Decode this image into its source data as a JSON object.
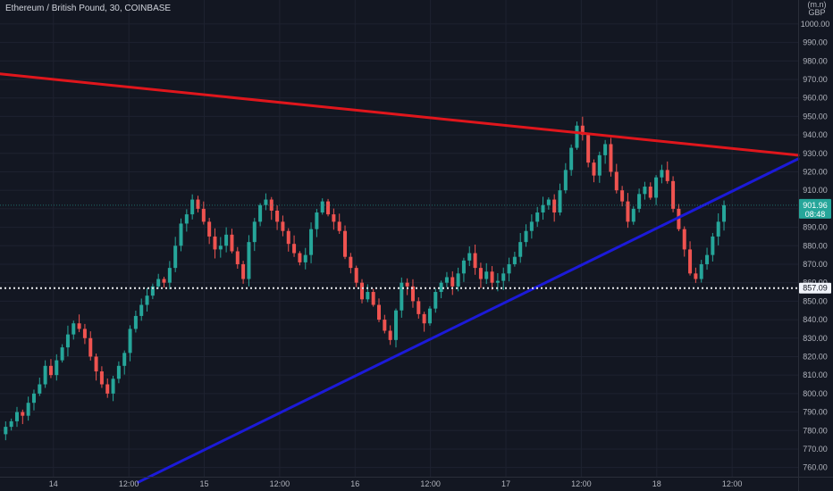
{
  "header": {
    "title": "Ethereum / British Pound, 30, COINBASE"
  },
  "axis_currency": {
    "line1": "(m.n)",
    "line2": "GBP"
  },
  "price_tags": {
    "last": {
      "price": "901.96",
      "countdown": "08:48",
      "color": "#26a69a"
    },
    "hline": {
      "price": "857.09",
      "color": "#e8e9ec"
    }
  },
  "colors": {
    "background": "#131722",
    "up": "#26a69a",
    "down": "#ef5350",
    "resistance": "#e0161c",
    "support": "#1c1ad8",
    "axis_text": "#b2b5be"
  },
  "chart_data": {
    "type": "candlestick",
    "title": "Ethereum / British Pound, 30, COINBASE",
    "y_ticks": [
      760,
      770,
      780,
      790,
      800,
      810,
      820,
      830,
      840,
      850,
      860,
      870,
      880,
      890,
      900,
      910,
      920,
      930,
      940,
      950,
      960,
      970,
      980,
      990,
      1000
    ],
    "y_tick_labels": [
      "760.00",
      "770.00",
      "780.00",
      "790.00",
      "800.00",
      "810.00",
      "820.00",
      "830.00",
      "840.00",
      "850.00",
      "860.00",
      "870.00",
      "880.00",
      "890.00",
      "900.00",
      "910.00",
      "920.00",
      "930.00",
      "940.00",
      "950.00",
      "960.00",
      "970.00",
      "980.00",
      "990.00",
      "1000.00"
    ],
    "ylim": [
      755,
      1013
    ],
    "x_ticks": [
      {
        "label": "14",
        "t": 0
      },
      {
        "label": "12:00",
        "t": 24
      },
      {
        "label": "15",
        "t": 48
      },
      {
        "label": "12:00",
        "t": 72
      },
      {
        "label": "16",
        "t": 96
      },
      {
        "label": "12:00",
        "t": 120
      },
      {
        "label": "17",
        "t": 144
      },
      {
        "label": "12:00",
        "t": 168
      },
      {
        "label": "18",
        "t": 192
      },
      {
        "label": "12:00",
        "t": 216
      }
    ],
    "x_range": [
      -17,
      237
    ],
    "last_price": 901.96,
    "horizontal_line": 857.09,
    "trendlines": [
      {
        "name": "resistance",
        "color": "#e0161c",
        "from": {
          "t": -17,
          "price": 973
        },
        "to": {
          "t": 237,
          "price": 929
        }
      },
      {
        "name": "support",
        "color": "#1c1ad8",
        "from": {
          "t": 27,
          "price": 752
        },
        "to": {
          "t": 237,
          "price": 927
        }
      }
    ],
    "close_series": [
      778,
      782,
      785,
      790,
      788,
      795,
      800,
      805,
      815,
      810,
      818,
      825,
      832,
      838,
      835,
      830,
      820,
      812,
      805,
      800,
      808,
      815,
      822,
      835,
      842,
      848,
      853,
      858,
      862,
      860,
      868,
      880,
      892,
      897,
      905,
      900,
      893,
      885,
      878,
      880,
      886,
      877,
      870,
      862,
      882,
      893,
      902,
      905,
      899,
      893,
      888,
      881,
      876,
      871,
      875,
      889,
      898,
      904,
      897,
      893,
      888,
      874,
      868,
      860,
      851,
      855,
      848,
      840,
      834,
      829,
      845,
      860,
      858,
      850,
      843,
      838,
      846,
      855,
      860,
      863,
      858,
      865,
      872,
      876,
      868,
      862,
      866,
      860,
      861,
      865,
      870,
      874,
      882,
      888,
      893,
      898,
      902,
      905,
      898,
      910,
      921,
      933,
      945,
      940,
      925,
      918,
      929,
      935,
      920,
      910,
      904,
      893,
      900,
      908,
      912,
      906,
      917,
      921,
      915,
      900,
      889,
      878,
      865,
      862,
      870,
      875,
      885,
      893,
      901.96
    ],
    "x_start_t": -17,
    "x_step": 1.8
  }
}
